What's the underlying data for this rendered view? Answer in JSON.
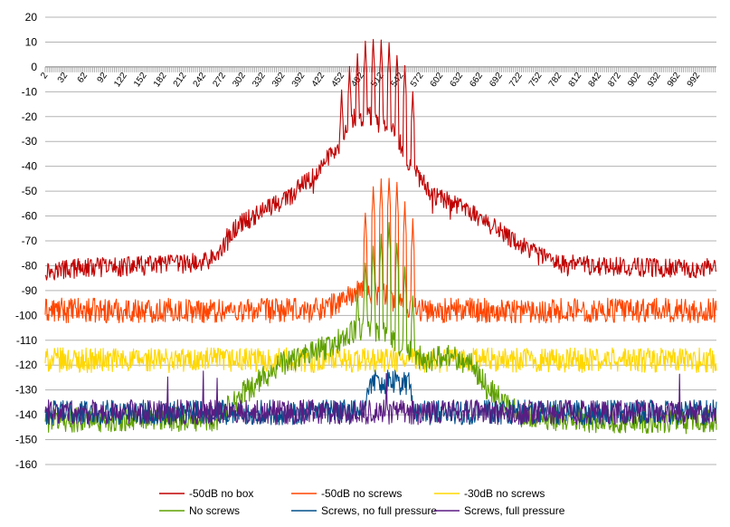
{
  "chart_data": {
    "type": "line",
    "title": "",
    "xlabel": "",
    "ylabel": "",
    "ylim": [
      -160,
      20
    ],
    "yticks": [
      20,
      10,
      0,
      -10,
      -20,
      -30,
      -40,
      -50,
      -60,
      -70,
      -80,
      -90,
      -100,
      -110,
      -120,
      -130,
      -140,
      -150,
      -160
    ],
    "xlim": [
      2,
      1021
    ],
    "xticks": [
      2,
      32,
      62,
      92,
      122,
      152,
      182,
      212,
      242,
      272,
      302,
      332,
      362,
      392,
      422,
      452,
      482,
      512,
      542,
      572,
      602,
      632,
      662,
      692,
      722,
      752,
      782,
      812,
      842,
      872,
      902,
      932,
      962,
      992
    ],
    "grid": true,
    "legend_position": "bottom",
    "series": [
      {
        "name": "-50dB no box",
        "color": "#C00000",
        "profile": [
          [
            2,
            -82
          ],
          [
            60,
            -81
          ],
          [
            150,
            -80
          ],
          [
            230,
            -79
          ],
          [
            262,
            -77
          ],
          [
            282,
            -67
          ],
          [
            300,
            -63
          ],
          [
            330,
            -58
          ],
          [
            370,
            -53
          ],
          [
            392,
            -48
          ],
          [
            412,
            -44
          ],
          [
            432,
            -36
          ],
          [
            452,
            -30
          ],
          [
            472,
            -20
          ],
          [
            512,
            -20
          ],
          [
            535,
            -28
          ],
          [
            552,
            -37
          ],
          [
            575,
            -47
          ],
          [
            600,
            -53
          ],
          [
            632,
            -56
          ],
          [
            660,
            -60
          ],
          [
            690,
            -66
          ],
          [
            720,
            -71
          ],
          [
            752,
            -76
          ],
          [
            782,
            -79
          ],
          [
            840,
            -80
          ],
          [
            960,
            -81
          ],
          [
            1021,
            -81
          ]
        ],
        "peaks": {
          "centers": [
            452,
            464,
            476,
            488,
            500,
            512,
            524,
            536,
            548,
            560
          ],
          "values": [
            -10,
            0,
            5,
            10,
            11,
            10,
            9,
            5,
            0,
            -10
          ]
        }
      },
      {
        "name": "-50dB no screws",
        "color": "#FF4500",
        "profile": [
          [
            2,
            -98
          ],
          [
            400,
            -98
          ],
          [
            438,
            -96
          ],
          [
            462,
            -92
          ],
          [
            490,
            -90
          ],
          [
            520,
            -92
          ],
          [
            548,
            -96
          ],
          [
            580,
            -98
          ],
          [
            1021,
            -98
          ]
        ],
        "peaks": {
          "centers": [
            488,
            500,
            512,
            524,
            536,
            548,
            560
          ],
          "values": [
            -58,
            -48,
            -45,
            -44,
            -47,
            -55,
            -62
          ]
        }
      },
      {
        "name": "-30dB no screws",
        "color": "#FFD700",
        "profile": [
          [
            2,
            -118
          ],
          [
            1021,
            -118
          ]
        ],
        "peaks": {
          "centers": [],
          "values": []
        }
      },
      {
        "name": "No screws",
        "color": "#5FA000",
        "profile": [
          [
            2,
            -142
          ],
          [
            262,
            -142
          ],
          [
            290,
            -134
          ],
          [
            320,
            -128
          ],
          [
            356,
            -120
          ],
          [
            398,
            -116
          ],
          [
            438,
            -112
          ],
          [
            462,
            -108
          ],
          [
            492,
            -104
          ],
          [
            522,
            -108
          ],
          [
            548,
            -114
          ],
          [
            578,
            -118
          ],
          [
            618,
            -116
          ],
          [
            650,
            -120
          ],
          [
            675,
            -130
          ],
          [
            705,
            -136
          ],
          [
            725,
            -140
          ],
          [
            800,
            -142
          ],
          [
            1021,
            -143
          ]
        ],
        "peaks": {
          "centers": [
            476,
            488,
            500,
            512,
            524,
            536,
            548,
            560
          ],
          "values": [
            -90,
            -78,
            -72,
            -68,
            -62,
            -70,
            -80,
            -92
          ]
        }
      },
      {
        "name": "Screws, no full pressure",
        "color": "#00508C",
        "profile": [
          [
            2,
            -139
          ],
          [
            485,
            -139
          ],
          [
            492,
            -127
          ],
          [
            555,
            -127
          ],
          [
            562,
            -139
          ],
          [
            1021,
            -139
          ]
        ],
        "peaks": {
          "centers": [],
          "values": []
        }
      },
      {
        "name": "Screws, full pressure",
        "color": "#5B1C82",
        "profile": [
          [
            2,
            -139
          ],
          [
            1021,
            -139
          ]
        ],
        "peaks": {
          "centers": [],
          "values": []
        }
      }
    ]
  }
}
